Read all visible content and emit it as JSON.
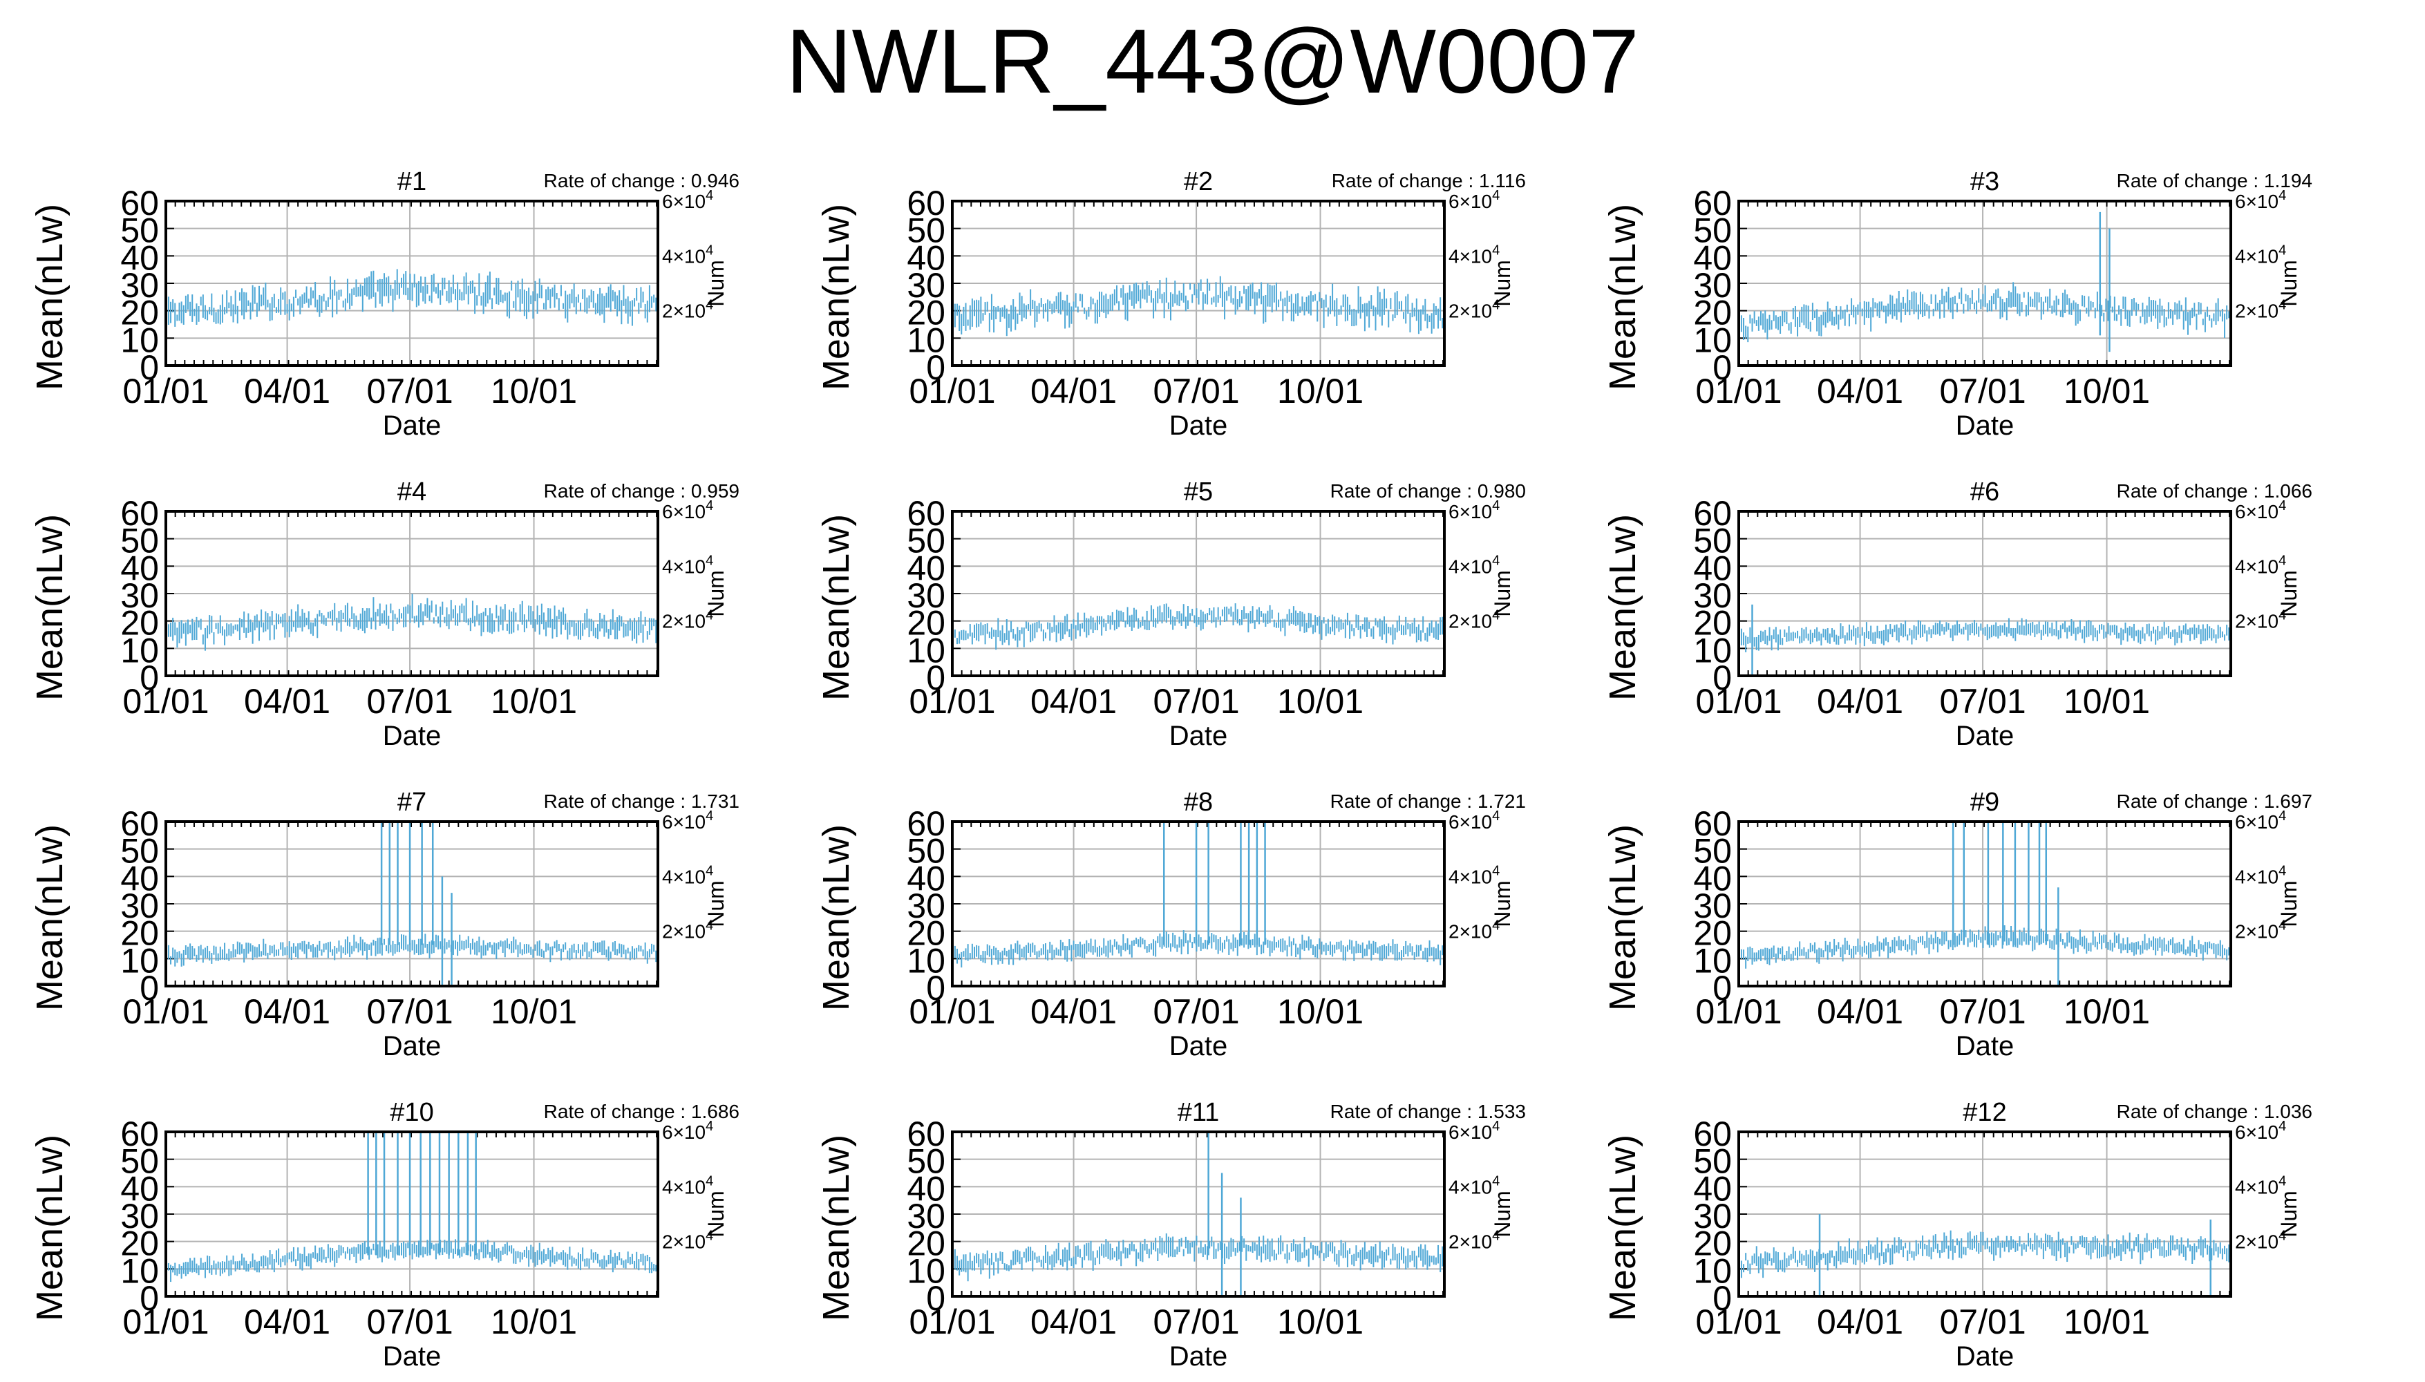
{
  "title": "NWLR_443@W0007",
  "colors": {
    "data": "#4fa8d6",
    "grid": "#b3b3b3",
    "axis": "#000000"
  },
  "axes": {
    "xlabel": "Date",
    "ylabel": "Mean(nLw)",
    "y2label": "Num",
    "xticks": [
      "01/01",
      "04/01",
      "07/01",
      "10/01"
    ],
    "yticks": [
      "0",
      "10",
      "20",
      "30",
      "40",
      "50",
      "60"
    ],
    "y2ticks": [
      {
        "mant": "2",
        "exp": "4"
      },
      {
        "mant": "4",
        "exp": "4"
      },
      {
        "mant": "6",
        "exp": "4"
      }
    ],
    "rate_prefix": "Rate of change : "
  },
  "chart_data": [
    {
      "type": "scatter",
      "title": "#1",
      "rate": "0.946",
      "xlim_days": [
        0,
        365
      ],
      "ylim": [
        0,
        60
      ],
      "y2lim": [
        0,
        60000
      ],
      "series": [
        {
          "y_start": 19,
          "y_mid": 28,
          "y_end": 22,
          "spread": 6,
          "spikes": []
        }
      ]
    },
    {
      "type": "scatter",
      "title": "#2",
      "rate": "1.116",
      "xlim_days": [
        0,
        365
      ],
      "ylim": [
        0,
        60
      ],
      "y2lim": [
        0,
        60000
      ],
      "series": [
        {
          "y_start": 17,
          "y_mid": 26,
          "y_end": 18,
          "spread": 6,
          "spikes": []
        }
      ]
    },
    {
      "type": "scatter",
      "title": "#3",
      "rate": "1.194",
      "xlim_days": [
        0,
        365
      ],
      "ylim": [
        0,
        60
      ],
      "y2lim": [
        0,
        60000
      ],
      "series": [
        {
          "y_start": 14,
          "y_mid": 24,
          "y_end": 17,
          "spread": 5,
          "spikes": [
            {
              "day": 268,
              "y": 56
            },
            {
              "day": 275,
              "y": 50
            }
          ]
        }
      ]
    },
    {
      "type": "scatter",
      "title": "#4",
      "rate": "0.959",
      "xlim_days": [
        0,
        365
      ],
      "ylim": [
        0,
        60
      ],
      "y2lim": [
        0,
        60000
      ],
      "series": [
        {
          "y_start": 15,
          "y_mid": 23,
          "y_end": 17,
          "spread": 5,
          "spikes": []
        }
      ]
    },
    {
      "type": "scatter",
      "title": "#5",
      "rate": "0.980",
      "xlim_days": [
        0,
        365
      ],
      "ylim": [
        0,
        60
      ],
      "y2lim": [
        0,
        60000
      ],
      "series": [
        {
          "y_start": 14,
          "y_mid": 22,
          "y_end": 16,
          "spread": 4,
          "spikes": []
        }
      ]
    },
    {
      "type": "scatter",
      "title": "#6",
      "rate": "1.066",
      "xlim_days": [
        0,
        365
      ],
      "ylim": [
        0,
        60
      ],
      "y2lim": [
        0,
        60000
      ],
      "series": [
        {
          "y_start": 13,
          "y_mid": 17,
          "y_end": 15,
          "spread": 3,
          "spikes": [
            {
              "day": 10,
              "y": 26
            }
          ]
        }
      ]
    },
    {
      "type": "scatter",
      "title": "#7",
      "rate": "1.731",
      "xlim_days": [
        0,
        365
      ],
      "ylim": [
        0,
        60
      ],
      "y2lim": [
        0,
        60000
      ],
      "series": [
        {
          "y_start": 11,
          "y_mid": 15,
          "y_end": 12,
          "spread": 3,
          "spikes": [
            {
              "day": 160,
              "y": 60
            },
            {
              "day": 166,
              "y": 60
            },
            {
              "day": 172,
              "y": 60
            },
            {
              "day": 181,
              "y": 60
            },
            {
              "day": 190,
              "y": 60
            },
            {
              "day": 198,
              "y": 60
            },
            {
              "day": 205,
              "y": 40
            },
            {
              "day": 212,
              "y": 34
            }
          ]
        }
      ]
    },
    {
      "type": "scatter",
      "title": "#8",
      "rate": "1.721",
      "xlim_days": [
        0,
        365
      ],
      "ylim": [
        0,
        60
      ],
      "y2lim": [
        0,
        60000
      ],
      "series": [
        {
          "y_start": 11,
          "y_mid": 16,
          "y_end": 12,
          "spread": 3,
          "spikes": [
            {
              "day": 157,
              "y": 60
            },
            {
              "day": 181,
              "y": 60
            },
            {
              "day": 190,
              "y": 60
            },
            {
              "day": 214,
              "y": 60
            },
            {
              "day": 220,
              "y": 60
            },
            {
              "day": 226,
              "y": 60
            },
            {
              "day": 232,
              "y": 60
            }
          ]
        }
      ]
    },
    {
      "type": "scatter",
      "title": "#9",
      "rate": "1.697",
      "xlim_days": [
        0,
        365
      ],
      "ylim": [
        0,
        60
      ],
      "y2lim": [
        0,
        60000
      ],
      "series": [
        {
          "y_start": 10,
          "y_mid": 18,
          "y_end": 13,
          "spread": 3,
          "spikes": [
            {
              "day": 159,
              "y": 60
            },
            {
              "day": 167,
              "y": 60
            },
            {
              "day": 185,
              "y": 60
            },
            {
              "day": 196,
              "y": 60
            },
            {
              "day": 205,
              "y": 60
            },
            {
              "day": 215,
              "y": 60
            },
            {
              "day": 223,
              "y": 60
            },
            {
              "day": 228,
              "y": 60
            },
            {
              "day": 237,
              "y": 36
            }
          ]
        }
      ]
    },
    {
      "type": "scatter",
      "title": "#10",
      "rate": "1.686",
      "xlim_days": [
        0,
        365
      ],
      "ylim": [
        0,
        60
      ],
      "y2lim": [
        0,
        60000
      ],
      "series": [
        {
          "y_start": 9,
          "y_mid": 18,
          "y_end": 12,
          "spread": 3,
          "spikes": [
            {
              "day": 150,
              "y": 60
            },
            {
              "day": 156,
              "y": 60
            },
            {
              "day": 162,
              "y": 60
            },
            {
              "day": 172,
              "y": 60
            },
            {
              "day": 181,
              "y": 60
            },
            {
              "day": 189,
              "y": 60
            },
            {
              "day": 196,
              "y": 60
            },
            {
              "day": 203,
              "y": 60
            },
            {
              "day": 210,
              "y": 60
            },
            {
              "day": 217,
              "y": 60
            },
            {
              "day": 224,
              "y": 60
            },
            {
              "day": 230,
              "y": 60
            }
          ]
        }
      ]
    },
    {
      "type": "scatter",
      "title": "#11",
      "rate": "1.533",
      "xlim_days": [
        0,
        365
      ],
      "ylim": [
        0,
        60
      ],
      "y2lim": [
        0,
        60000
      ],
      "series": [
        {
          "y_start": 11,
          "y_mid": 18,
          "y_end": 14,
          "spread": 4,
          "spikes": [
            {
              "day": 190,
              "y": 60
            },
            {
              "day": 200,
              "y": 45
            },
            {
              "day": 214,
              "y": 36
            }
          ]
        }
      ]
    },
    {
      "type": "scatter",
      "title": "#12",
      "rate": "1.036",
      "xlim_days": [
        0,
        365
      ],
      "ylim": [
        0,
        60
      ],
      "y2lim": [
        0,
        60000
      ],
      "series": [
        {
          "y_start": 12,
          "y_mid": 19,
          "y_end": 17,
          "spread": 4,
          "spikes": [
            {
              "day": 60,
              "y": 30
            },
            {
              "day": 350,
              "y": 28
            }
          ]
        }
      ]
    }
  ]
}
